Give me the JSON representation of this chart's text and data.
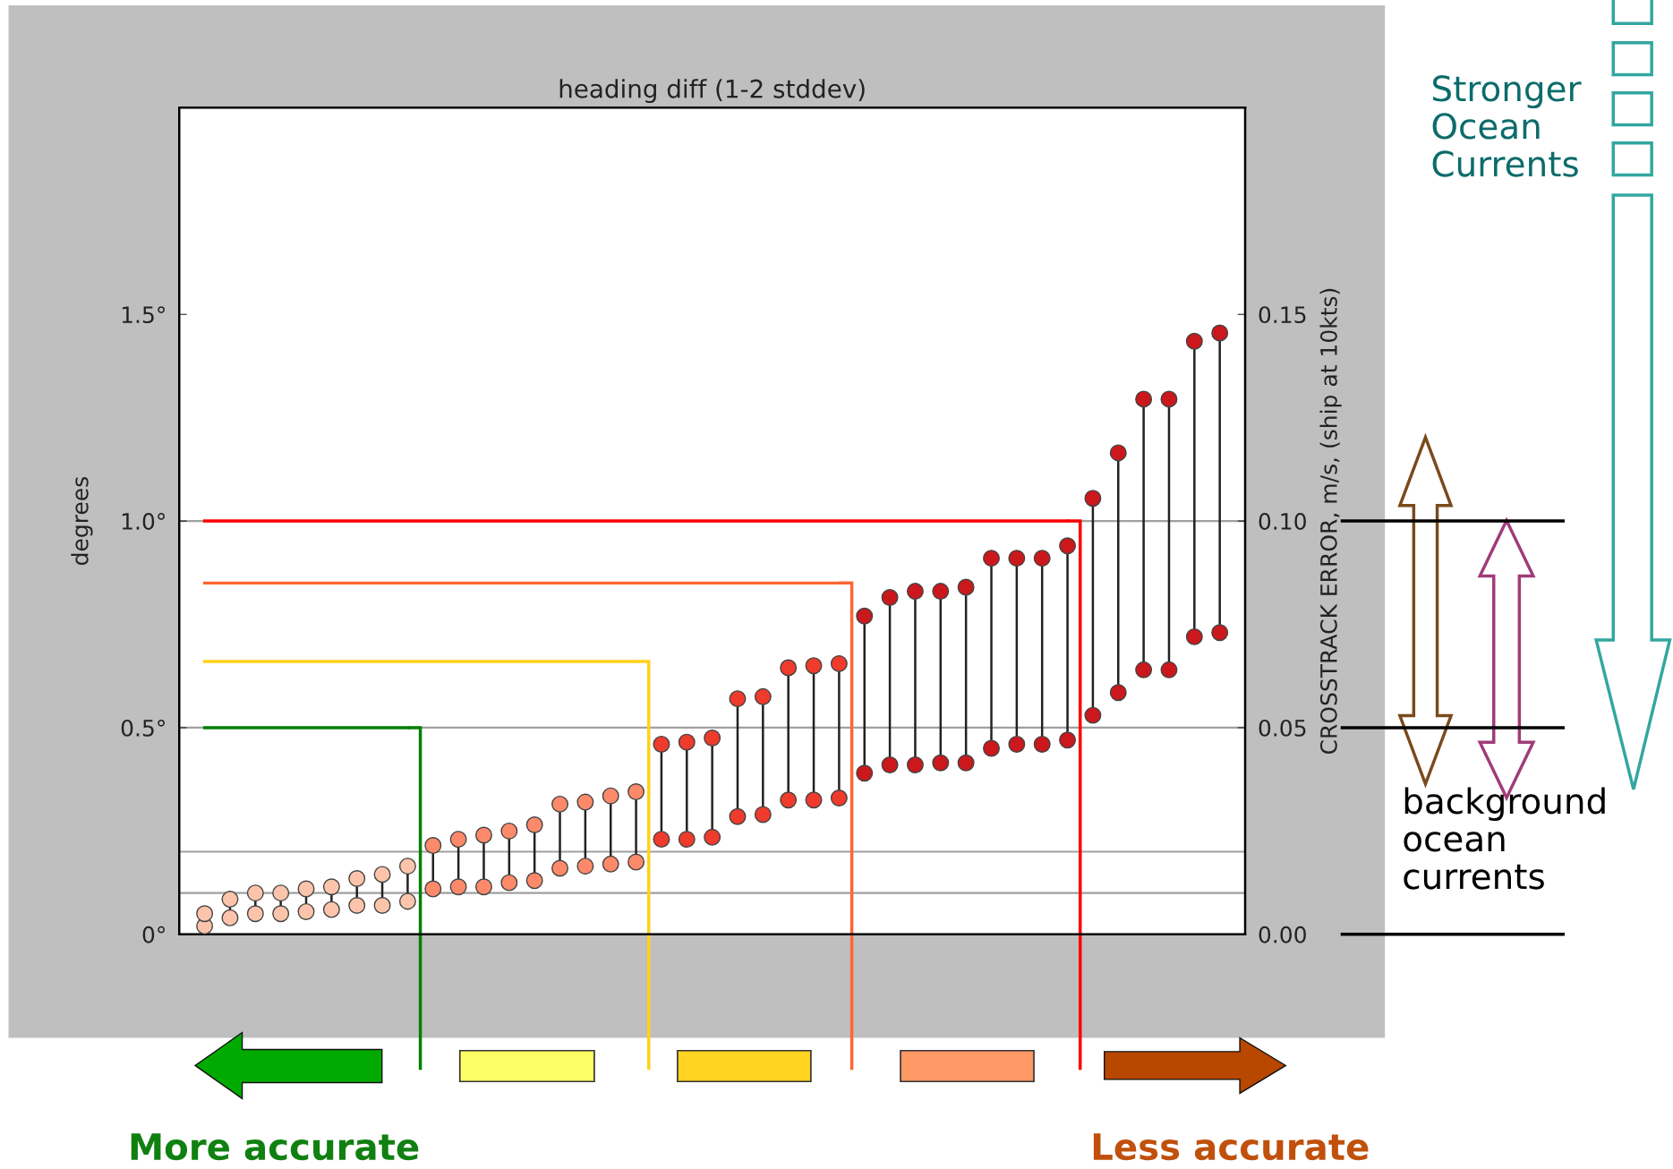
{
  "chart_data": {
    "type": "scatter",
    "title": "heading diff (1-2 stddev)",
    "ylabel": "degrees",
    "y2label": "CROSSTRACK ERROR, m/s, (ship at 10kts)",
    "categories": [
      null,
      null,
      null,
      null,
      null,
      null,
      null,
      null,
      null,
      null,
      null,
      null,
      null,
      null,
      null,
      null,
      null,
      null,
      null,
      null,
      null,
      null,
      null,
      null,
      null,
      null,
      null,
      null,
      null,
      null,
      null,
      null,
      null,
      null,
      null,
      null,
      null,
      null,
      null,
      null,
      null
    ],
    "series": [
      {
        "type": "scatter",
        "values": [
          0.02,
          0.04,
          0.05,
          0.05,
          0.055,
          0.06,
          0.07,
          0.07,
          0.08,
          0.11,
          0.115,
          0.115,
          0.125,
          0.13,
          0.16,
          0.165,
          0.17,
          0.175,
          0.23,
          0.23,
          0.235,
          0.285,
          0.29,
          0.325,
          0.325,
          0.33,
          0.39,
          0.41,
          0.41,
          0.415,
          0.415,
          0.45,
          0.46,
          0.46,
          0.47,
          0.53,
          0.585,
          0.64,
          0.64,
          0.72,
          0.73
        ],
        "colors": [
          "#fcc4aa",
          "#fcc4aa",
          "#fcc4aa",
          "#fcc4aa",
          "#fcc4aa",
          "#fcc4aa",
          "#fcc4aa",
          "#fcc4aa",
          "#fcc4aa",
          "#fc8a6a",
          "#fc8a6a",
          "#fc8a6a",
          "#fc8a6a",
          "#fc8a6a",
          "#fc8a6a",
          "#fc8a6a",
          "#fc8a6a",
          "#fc8a6a",
          "#ef3b2c",
          "#ef3b2c",
          "#ef3b2c",
          "#ef3b2c",
          "#ef3b2c",
          "#ef3b2c",
          "#ef3b2c",
          "#ef3b2c",
          "#cb181d",
          "#cb181d",
          "#cb181d",
          "#cb181d",
          "#cb181d",
          "#cb181d",
          "#cb181d",
          "#cb181d",
          "#cb181d",
          "#cb181d",
          "#cb181d",
          "#cb181d",
          "#cb181d",
          "#cb181d",
          "#cb181d"
        ]
      },
      {
        "type": "scatter",
        "values": [
          0.05,
          0.085,
          0.1,
          0.1,
          0.11,
          0.115,
          0.135,
          0.145,
          0.165,
          0.215,
          0.23,
          0.24,
          0.25,
          0.265,
          0.315,
          0.32,
          0.335,
          0.345,
          0.46,
          0.465,
          0.475,
          0.57,
          0.575,
          0.645,
          0.65,
          0.655,
          0.77,
          0.815,
          0.83,
          0.83,
          0.84,
          0.91,
          0.91,
          0.91,
          0.94,
          1.055,
          1.165,
          1.295,
          1.295,
          1.435,
          1.455
        ],
        "colors": [
          "#fcc4aa",
          "#fcc4aa",
          "#fcc4aa",
          "#fcc4aa",
          "#fcc4aa",
          "#fcc4aa",
          "#fcc4aa",
          "#fcc4aa",
          "#fcc4aa",
          "#fc8a6a",
          "#fc8a6a",
          "#fc8a6a",
          "#fc8a6a",
          "#fc8a6a",
          "#fc8a6a",
          "#fc8a6a",
          "#fc8a6a",
          "#fc8a6a",
          "#ef3b2c",
          "#ef3b2c",
          "#ef3b2c",
          "#ef3b2c",
          "#ef3b2c",
          "#ef3b2c",
          "#ef3b2c",
          "#ef3b2c",
          "#cb181d",
          "#cb181d",
          "#cb181d",
          "#cb181d",
          "#cb181d",
          "#cb181d",
          "#cb181d",
          "#cb181d",
          "#cb181d",
          "#cb181d",
          "#cb181d",
          "#cb181d",
          "#cb181d",
          "#cb181d",
          "#cb181d"
        ]
      },
      {
        "type": "line",
        "color": "#008000",
        "marker": "none",
        "values": [
          0.5,
          0.5,
          0.5,
          0.5,
          0.5,
          0.5,
          0.5,
          0.5,
          0.5,
          null,
          null,
          null,
          null,
          null,
          null,
          null,
          null,
          null,
          null,
          null,
          null,
          null,
          null,
          null,
          null,
          null,
          null,
          null,
          null,
          null,
          null,
          null,
          null,
          null,
          null,
          null,
          null,
          null,
          null,
          null,
          null
        ]
      },
      {
        "type": "line",
        "color": "#ffd11a",
        "marker": "none",
        "values": [
          0.66,
          0.66,
          0.66,
          0.66,
          0.66,
          0.66,
          0.66,
          0.66,
          0.66,
          0.66,
          0.66,
          0.66,
          0.66,
          0.66,
          0.66,
          0.66,
          0.66,
          0.66,
          null,
          null,
          null,
          null,
          null,
          null,
          null,
          null,
          null,
          null,
          null,
          null,
          null,
          null,
          null,
          null,
          null,
          null,
          null,
          null,
          null,
          null,
          null
        ]
      },
      {
        "type": "line",
        "color": "#ff6633",
        "marker": "none",
        "values": [
          0.85,
          0.85,
          0.85,
          0.85,
          0.85,
          0.85,
          0.85,
          0.85,
          0.85,
          0.85,
          0.85,
          0.85,
          0.85,
          0.85,
          0.85,
          0.85,
          0.85,
          0.85,
          0.85,
          0.85,
          0.85,
          0.85,
          0.85,
          0.85,
          0.85,
          0.85,
          null,
          null,
          null,
          null,
          null,
          null,
          null,
          null,
          null,
          null,
          null,
          null,
          null,
          null,
          null
        ]
      },
      {
        "type": "line",
        "color": "#ff0000",
        "marker": "none",
        "values": [
          1.0,
          1.0,
          1.0,
          1.0,
          1.0,
          1.0,
          1.0,
          1.0,
          1.0,
          1.0,
          1.0,
          1.0,
          1.0,
          1.0,
          1.0,
          1.0,
          1.0,
          1.0,
          1.0,
          1.0,
          1.0,
          1.0,
          1.0,
          1.0,
          1.0,
          1.0,
          1.0,
          1.0,
          1.0,
          1.0,
          1.0,
          1.0,
          1.0,
          1.0,
          1.0,
          null,
          null,
          null,
          null,
          null,
          null
        ]
      }
    ],
    "marker": "circle",
    "ylim": [
      0,
      2
    ],
    "yticks": [
      {
        "value": 0,
        "label": "0°"
      },
      {
        "value": 0.5,
        "label": "0.5°"
      },
      {
        "value": 1.0,
        "label": "1.0°"
      },
      {
        "value": 1.5,
        "label": "1.5°"
      }
    ],
    "y2lim": [
      0,
      0.2
    ],
    "y2ticks": [
      {
        "value": 0,
        "label": "0.00"
      },
      {
        "value": 0.05,
        "label": "0.05"
      },
      {
        "value": 0.1,
        "label": "0.10"
      },
      {
        "value": 0.15,
        "label": "0.15"
      }
    ],
    "ref_lines": [
      {
        "axis": "y2",
        "value": 0.01,
        "label": null,
        "color": "#a0a0a0"
      },
      {
        "axis": "y2",
        "value": 0.02,
        "label": null,
        "color": "#a0a0a0"
      },
      {
        "axis": "y2",
        "value": 0.05,
        "label": null,
        "color": "#a0a0a0"
      },
      {
        "axis": "y2",
        "value": 0.1,
        "label": null,
        "color": "#a0a0a0"
      }
    ],
    "grid": false,
    "legend": false,
    "annotations": [
      "Stronger\nOcean\nCurrents",
      "background\nocean\ncurrents",
      "More accurate",
      "Less accurate"
    ]
  }
}
